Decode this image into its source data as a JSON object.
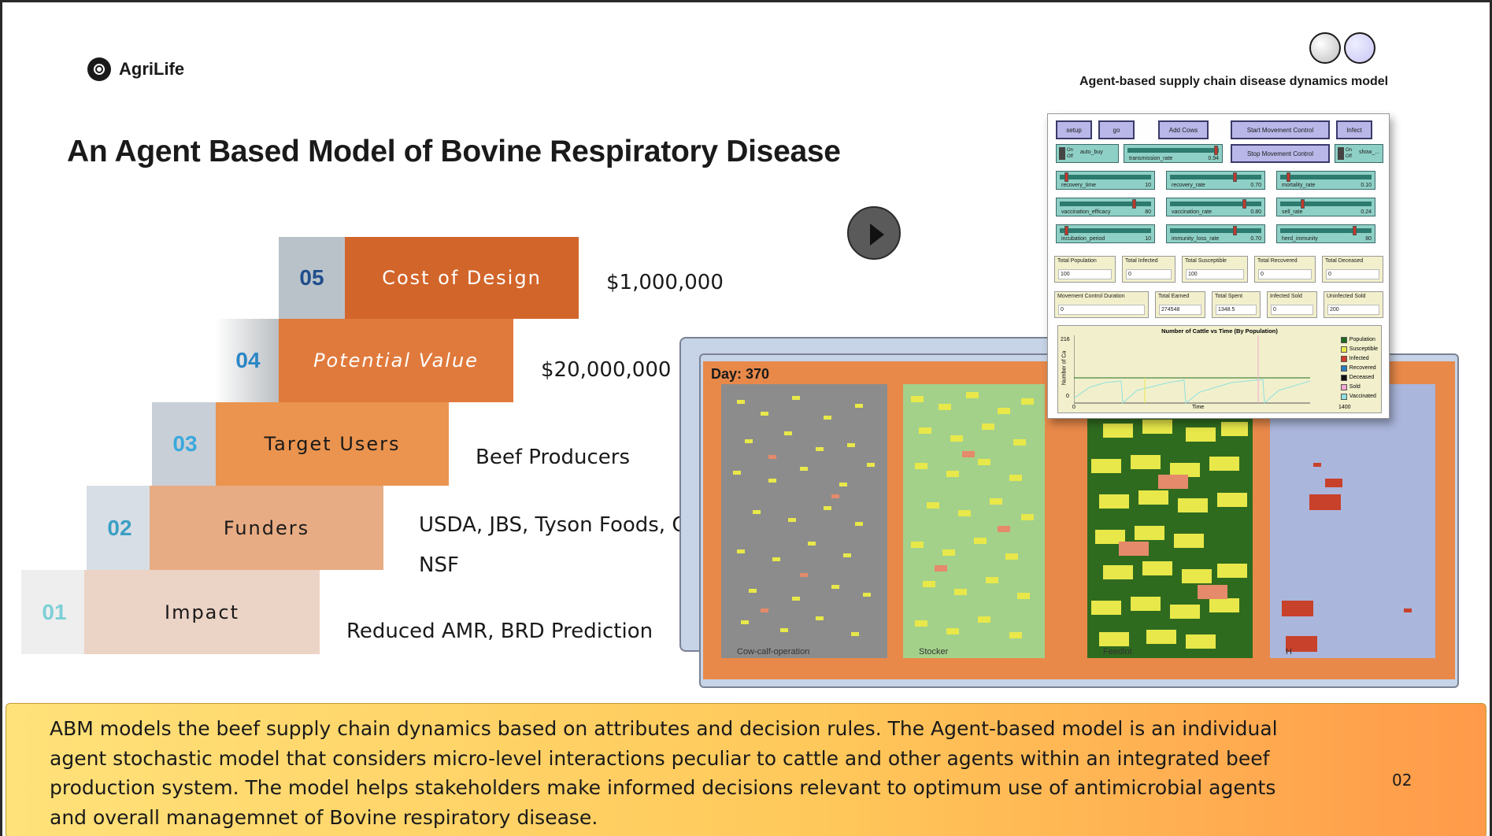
{
  "brand": {
    "name": "AgriLife",
    "icon": "logo-target-icon"
  },
  "header": {
    "model_caption": "Agent-based supply chain disease dynamics model",
    "title": "An Agent Based Model of Bovine Respiratory Disease"
  },
  "steps": [
    {
      "number": "05",
      "label": "Cost of Design",
      "value": "$1,000,000"
    },
    {
      "number": "04",
      "label": "Potential Value",
      "value": "$20,000,000"
    },
    {
      "number": "03",
      "label": "Target Users",
      "value": "Beef Producers"
    },
    {
      "number": "02",
      "label": "Funders",
      "value_line1": "USDA, JBS, Tyson Foods, Cargill,",
      "value_line2": "NSF"
    },
    {
      "number": "01",
      "label": "Impact",
      "value": "Reduced AMR, BRD Prediction"
    }
  ],
  "colors": {
    "step5": "#d2652a",
    "step4": "#e07a3c",
    "step3": "#eb944f",
    "step2": "#e8ac84",
    "step1": "#ebd3c5",
    "accent_blue": "#2b6cb0",
    "pen_cowcalf": "#8c8c8c",
    "pen_stocker": "#a3d18a",
    "pen_feedlot": "#2f6b1f",
    "pen_hospital": "#aab6dc"
  },
  "simulation": {
    "day_label": "Day: 370",
    "pens": [
      {
        "label": "Cow-calf-operation"
      },
      {
        "label": "Stocker"
      },
      {
        "label": "Feedlot"
      },
      {
        "label": "H"
      }
    ]
  },
  "panel": {
    "buttons": [
      "setup",
      "go",
      "Add Cows",
      "Start Movement Control",
      "Infect",
      "Stop Movement Control"
    ],
    "toggles": [
      {
        "state": "On\nOff",
        "label": "auto_buy"
      },
      {
        "state": "On\nOff",
        "label": "show_..."
      }
    ],
    "sliders": [
      {
        "label": "transmission_rate",
        "value": "0.94"
      },
      {
        "label": "recovery_time",
        "value": "10"
      },
      {
        "label": "recovery_rate",
        "value": "0.70"
      },
      {
        "label": "mortality_rate",
        "value": "0.10"
      },
      {
        "label": "vaccination_efficacy",
        "value": "80"
      },
      {
        "label": "vaccination_rate",
        "value": "0.80"
      },
      {
        "label": "sell_rate",
        "value": "0.24"
      },
      {
        "label": "incubation_period",
        "value": "10"
      },
      {
        "label": "immunity_loss_rate",
        "value": "0.70"
      },
      {
        "label": "herd_immunity",
        "value": "80"
      }
    ],
    "monitors": [
      {
        "label": "Total Population",
        "value": "100"
      },
      {
        "label": "Total Infected",
        "value": "0"
      },
      {
        "label": "Total Susceptible",
        "value": "100"
      },
      {
        "label": "Total Recovered",
        "value": "0"
      },
      {
        "label": "Total Deceased",
        "value": "0"
      },
      {
        "label": "Movement Control Duration",
        "value": "0"
      },
      {
        "label": "Total Earned",
        "value": "274548"
      },
      {
        "label": "Total Spent",
        "value": "1348.5"
      },
      {
        "label": "Infected Sold",
        "value": "0"
      },
      {
        "label": "Uninfected Sold",
        "value": "200"
      }
    ],
    "chart": {
      "title": "Number of Cattle vs Time (By Population)",
      "ylabel": "Number of Ca",
      "xlabel": "Time",
      "y_max": "216",
      "y_min": "0",
      "x_min": "0",
      "x_max": "1400",
      "legend": [
        {
          "name": "Population",
          "color": "#1f6b1f"
        },
        {
          "name": "Susceptible",
          "color": "#e8e84a"
        },
        {
          "name": "Infected",
          "color": "#d23b2a"
        },
        {
          "name": "Recovered",
          "color": "#2b7bb9"
        },
        {
          "name": "Deceased",
          "color": "#111111"
        },
        {
          "name": "Sold",
          "color": "#f2a8d0"
        },
        {
          "name": "Vaccinated",
          "color": "#8fe0e0"
        }
      ]
    }
  },
  "footer": {
    "description": "ABM models the beef supply chain dynamics based on attributes and decision rules. The Agent-based model is an individual agent stochastic model that considers micro-level interactions peculiar to cattle and other agents within an integrated beef production system. The model helps stakeholders make informed decisions relevant to optimum use of antimicrobial agents and overall managemnet of Bovine respiratory disease.",
    "page_number": "02"
  }
}
